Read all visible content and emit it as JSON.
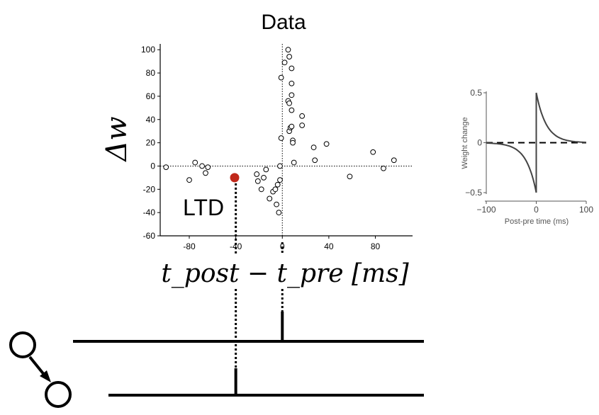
{
  "chart_data": [
    {
      "type": "scatter",
      "title": "Data",
      "xlabel": "t_post − t_pre [ms]",
      "ylabel": "Δw",
      "xlim": [
        -105,
        112
      ],
      "ylim": [
        -60,
        105
      ],
      "xticks": [
        -80,
        -40,
        0,
        40,
        80
      ],
      "yticks": [
        -60,
        -40,
        -20,
        0,
        20,
        40,
        60,
        80,
        100
      ],
      "zero_lines": "dotted",
      "annotation": "LTD",
      "highlight_point": {
        "x": -41,
        "y": -10,
        "color": "#c0281a"
      },
      "points": [
        {
          "x": -100,
          "y": -1
        },
        {
          "x": -80,
          "y": -12
        },
        {
          "x": -75,
          "y": 3
        },
        {
          "x": -69,
          "y": 0
        },
        {
          "x": -66,
          "y": -6
        },
        {
          "x": -64,
          "y": -1
        },
        {
          "x": -22,
          "y": -7
        },
        {
          "x": -21,
          "y": -13
        },
        {
          "x": -18,
          "y": -20
        },
        {
          "x": -16,
          "y": -10
        },
        {
          "x": -14,
          "y": -3
        },
        {
          "x": -11,
          "y": -28
        },
        {
          "x": -8,
          "y": -22
        },
        {
          "x": -6,
          "y": -20
        },
        {
          "x": -5,
          "y": -33
        },
        {
          "x": -4,
          "y": -16
        },
        {
          "x": -3,
          "y": -40
        },
        {
          "x": -2,
          "y": -12
        },
        {
          "x": -2,
          "y": 0
        },
        {
          "x": -1,
          "y": 24
        },
        {
          "x": -1,
          "y": 76
        },
        {
          "x": 2,
          "y": 89
        },
        {
          "x": 5,
          "y": 100
        },
        {
          "x": 6,
          "y": 94
        },
        {
          "x": 5,
          "y": 56
        },
        {
          "x": 6,
          "y": 54
        },
        {
          "x": 6,
          "y": 30
        },
        {
          "x": 7,
          "y": 33
        },
        {
          "x": 8,
          "y": 84
        },
        {
          "x": 8,
          "y": 71
        },
        {
          "x": 8,
          "y": 61
        },
        {
          "x": 8,
          "y": 48
        },
        {
          "x": 8,
          "y": 34
        },
        {
          "x": 9,
          "y": 22
        },
        {
          "x": 9,
          "y": 20
        },
        {
          "x": 10,
          "y": 3
        },
        {
          "x": 17,
          "y": 43
        },
        {
          "x": 17,
          "y": 35
        },
        {
          "x": 27,
          "y": 16
        },
        {
          "x": 28,
          "y": 5
        },
        {
          "x": 38,
          "y": 19
        },
        {
          "x": 58,
          "y": -9
        },
        {
          "x": 78,
          "y": 12
        },
        {
          "x": 87,
          "y": -2
        },
        {
          "x": 96,
          "y": 5
        }
      ]
    },
    {
      "type": "line",
      "title": "",
      "xlabel": "Post-pre time (ms)",
      "ylabel": "Weight change",
      "xlim": [
        -100,
        100
      ],
      "ylim": [
        -0.5,
        0.5
      ],
      "xticks": [
        -100,
        0,
        100
      ],
      "yticks": [
        -0.5,
        0,
        0.5
      ],
      "xtick_labels": [
        "−100",
        "0",
        "100"
      ],
      "ytick_labels": [
        "−0.5",
        "0",
        "0.5"
      ],
      "baseline": "dashed",
      "series": [
        {
          "color": "#444444",
          "amplitude_plus": 0.5,
          "amplitude_minus": -0.5,
          "tau_ms": 20
        }
      ]
    }
  ],
  "neurons": {
    "pre_spike_x_ms": 0,
    "post_spike_x_ms": -40
  }
}
